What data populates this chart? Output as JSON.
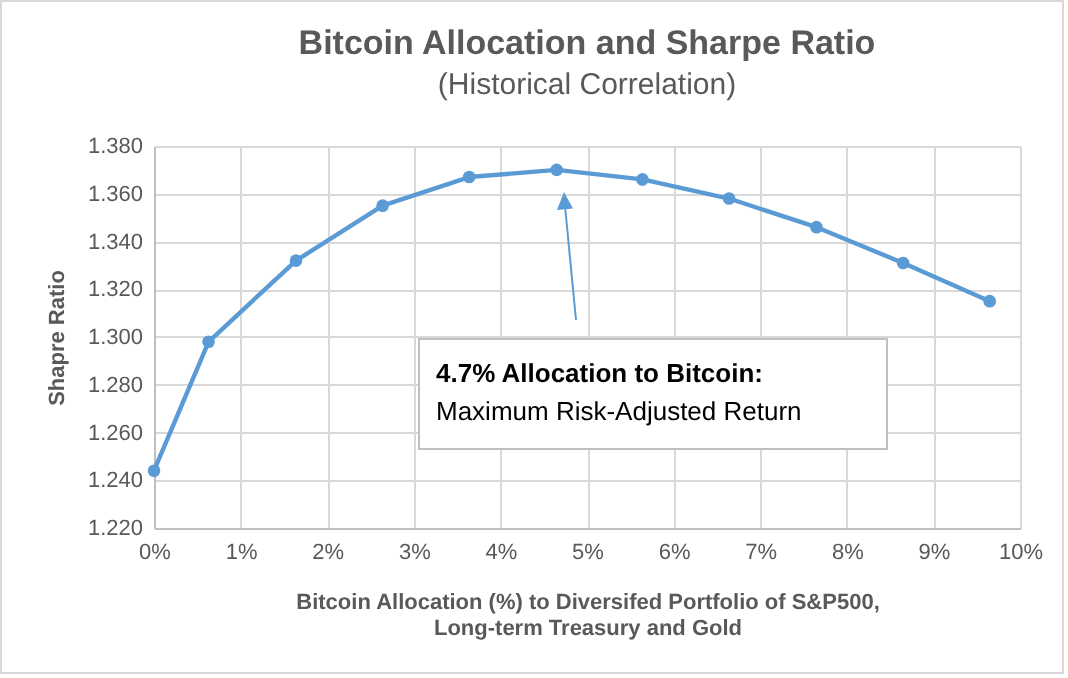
{
  "chart_data": {
    "type": "line",
    "title": "Bitcoin Allocation and Sharpe Ratio",
    "subtitle": "(Historical Correlation)",
    "xlabel": "Bitcoin  Allocation (%) to Diversifed Portfolio of S&P500, Long-term Treasury and Gold",
    "ylabel": "Shapre Ratio",
    "x": [
      0,
      0.63,
      1.64,
      2.64,
      3.64,
      4.65,
      5.64,
      6.64,
      7.65,
      8.65,
      9.65
    ],
    "series": [
      {
        "color": "#5b9bd5",
        "values": [
          1.244,
          1.298,
          1.332,
          1.355,
          1.367,
          1.37,
          1.366,
          1.358,
          1.346,
          1.331,
          1.315
        ]
      }
    ],
    "xlim": [
      0,
      10
    ],
    "xticks": [
      {
        "value": 0,
        "label": "0%"
      },
      {
        "value": 1,
        "label": "1%"
      },
      {
        "value": 2,
        "label": "2%"
      },
      {
        "value": 3,
        "label": "3%"
      },
      {
        "value": 4,
        "label": "4%"
      },
      {
        "value": 5,
        "label": "5%"
      },
      {
        "value": 6,
        "label": "6%"
      },
      {
        "value": 7,
        "label": "7%"
      },
      {
        "value": 8,
        "label": "8%"
      },
      {
        "value": 9,
        "label": "9%"
      },
      {
        "value": 10,
        "label": "10%"
      }
    ],
    "ylim": [
      1.22,
      1.38
    ],
    "yticks": [
      {
        "value": 1.22,
        "label": "1.220"
      },
      {
        "value": 1.24,
        "label": "1.240"
      },
      {
        "value": 1.26,
        "label": "1.260"
      },
      {
        "value": 1.28,
        "label": "1.280"
      },
      {
        "value": 1.3,
        "label": "1.300"
      },
      {
        "value": 1.32,
        "label": "1.320"
      },
      {
        "value": 1.34,
        "label": "1.340"
      },
      {
        "value": 1.36,
        "label": "1.360"
      },
      {
        "value": 1.38,
        "label": "1.380"
      }
    ],
    "annotations": [
      "4.7% Allocation to Bitcoin:",
      "Maximum Risk-Adjusted Return"
    ],
    "grid": true,
    "legend": false,
    "marker": "circle",
    "line_style": "solid"
  }
}
